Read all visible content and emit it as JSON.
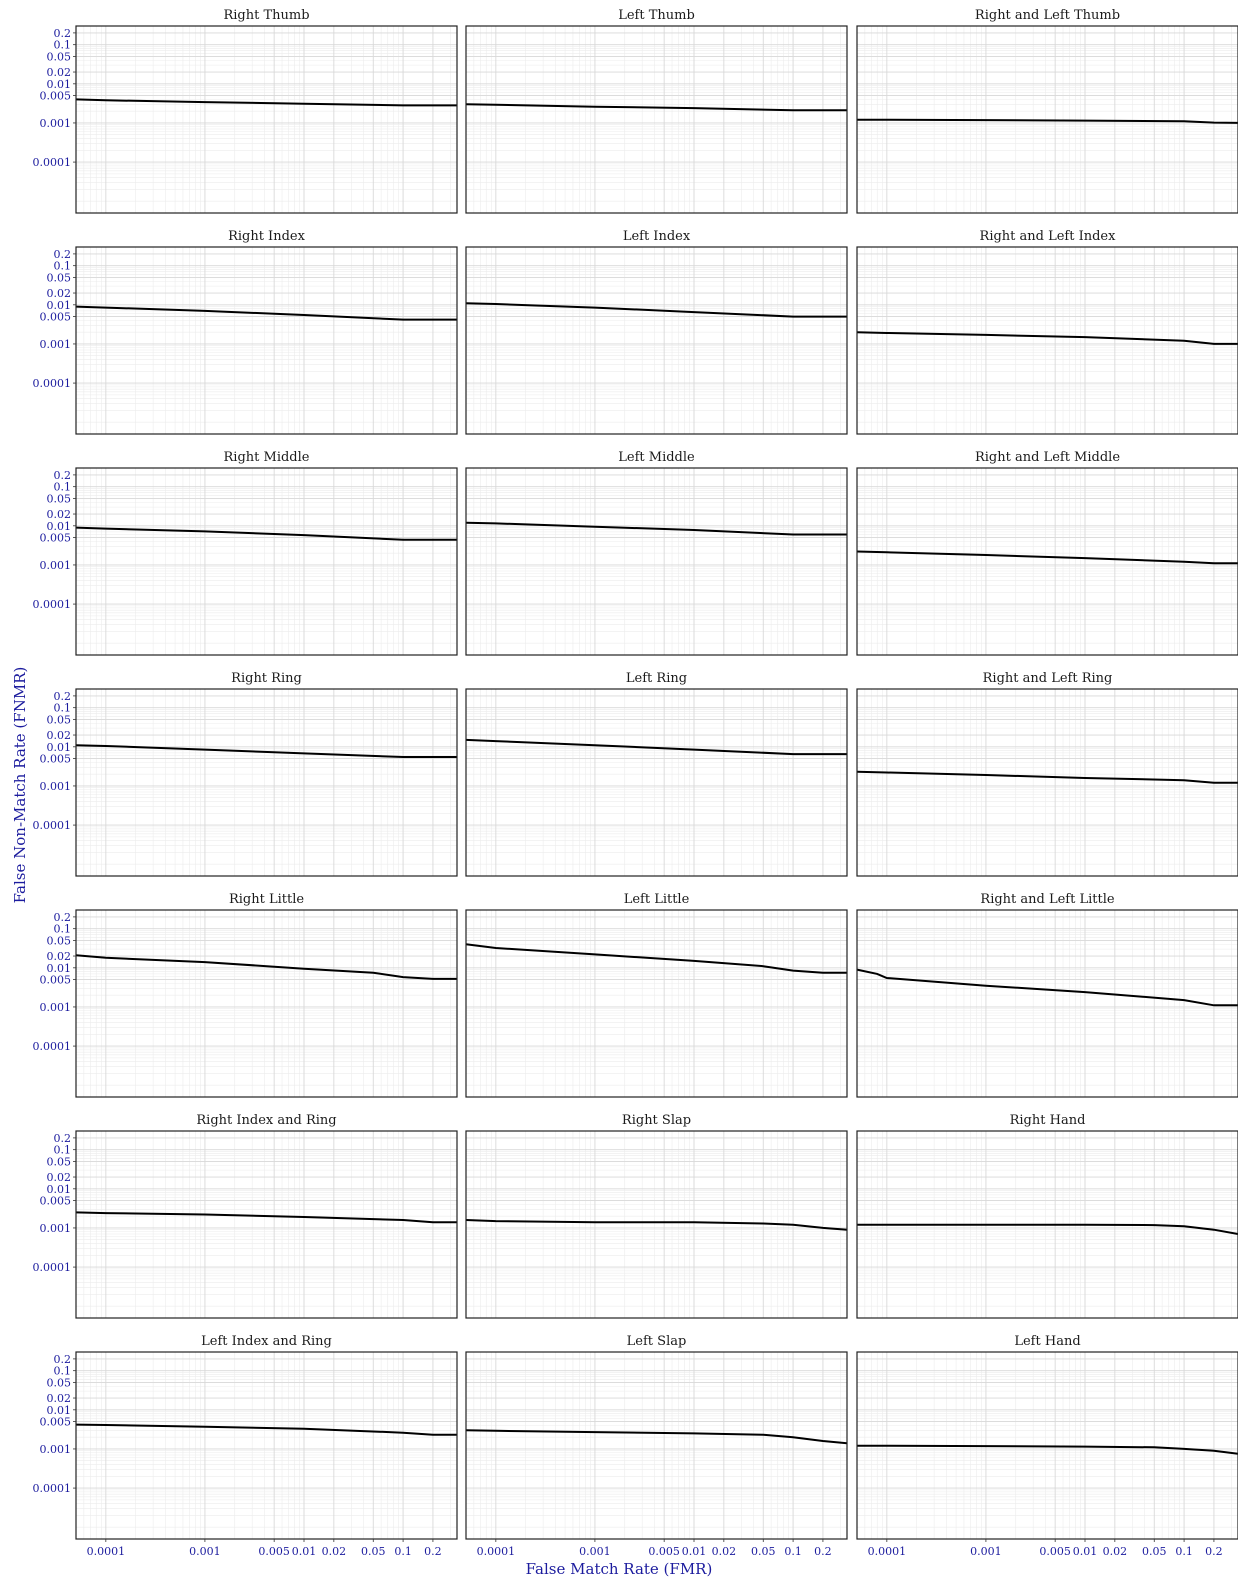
{
  "figure": {
    "xlabel": "False Match Rate (FMR)",
    "ylabel": "False Non-Match Rate (FNMR)",
    "tick_color": "#1c1c9e",
    "line_color": "#000000",
    "grid_color": "#d9d9d9"
  },
  "chart_data": [
    {
      "type": "line",
      "title": "Right Thumb",
      "x": [
        5e-05,
        0.0001,
        0.001,
        0.01,
        0.1,
        0.2,
        0.35
      ],
      "y": [
        0.004,
        0.0038,
        0.0034,
        0.0031,
        0.0028,
        0.0028,
        0.0028
      ],
      "xscale": "log",
      "yscale": "log",
      "xlim": [
        5e-05,
        0.35
      ],
      "ylim": [
        5e-06,
        0.3
      ]
    },
    {
      "type": "line",
      "title": "Left Thumb",
      "x": [
        5e-05,
        0.0001,
        0.001,
        0.01,
        0.1,
        0.2,
        0.35
      ],
      "y": [
        0.003,
        0.0029,
        0.0026,
        0.0024,
        0.0021,
        0.0021,
        0.0021
      ],
      "xscale": "log",
      "yscale": "log",
      "xlim": [
        5e-05,
        0.35
      ],
      "ylim": [
        5e-06,
        0.3
      ]
    },
    {
      "type": "line",
      "title": "Right and Left Thumb",
      "x": [
        5e-05,
        0.0001,
        0.001,
        0.01,
        0.1,
        0.2,
        0.35
      ],
      "y": [
        0.0012,
        0.0012,
        0.00118,
        0.00115,
        0.0011,
        0.00102,
        0.001
      ],
      "xscale": "log",
      "yscale": "log",
      "xlim": [
        5e-05,
        0.35
      ],
      "ylim": [
        5e-06,
        0.3
      ]
    },
    {
      "type": "line",
      "title": "Right Index",
      "x": [
        5e-05,
        0.0001,
        0.001,
        0.01,
        0.1,
        0.2,
        0.35
      ],
      "y": [
        0.009,
        0.0085,
        0.007,
        0.0055,
        0.0042,
        0.0042,
        0.0042
      ],
      "xscale": "log",
      "yscale": "log",
      "xlim": [
        5e-05,
        0.35
      ],
      "ylim": [
        5e-06,
        0.3
      ]
    },
    {
      "type": "line",
      "title": "Left Index",
      "x": [
        5e-05,
        0.0001,
        0.001,
        0.01,
        0.1,
        0.2,
        0.35
      ],
      "y": [
        0.011,
        0.0105,
        0.0085,
        0.0065,
        0.005,
        0.005,
        0.005
      ],
      "xscale": "log",
      "yscale": "log",
      "xlim": [
        5e-05,
        0.35
      ],
      "ylim": [
        5e-06,
        0.3
      ]
    },
    {
      "type": "line",
      "title": "Right and Left Index",
      "x": [
        5e-05,
        0.0001,
        0.001,
        0.01,
        0.1,
        0.2,
        0.35
      ],
      "y": [
        0.002,
        0.0019,
        0.0017,
        0.0015,
        0.0012,
        0.001,
        0.001
      ],
      "xscale": "log",
      "yscale": "log",
      "xlim": [
        5e-05,
        0.35
      ],
      "ylim": [
        5e-06,
        0.3
      ]
    },
    {
      "type": "line",
      "title": "Right Middle",
      "x": [
        5e-05,
        0.0001,
        0.001,
        0.01,
        0.1,
        0.2,
        0.35
      ],
      "y": [
        0.009,
        0.0085,
        0.0072,
        0.0058,
        0.0044,
        0.0044,
        0.0044
      ],
      "xscale": "log",
      "yscale": "log",
      "xlim": [
        5e-05,
        0.35
      ],
      "ylim": [
        5e-06,
        0.3
      ]
    },
    {
      "type": "line",
      "title": "Left Middle",
      "x": [
        5e-05,
        0.0001,
        0.001,
        0.01,
        0.1,
        0.2,
        0.35
      ],
      "y": [
        0.012,
        0.0115,
        0.0095,
        0.0078,
        0.006,
        0.006,
        0.006
      ],
      "xscale": "log",
      "yscale": "log",
      "xlim": [
        5e-05,
        0.35
      ],
      "ylim": [
        5e-06,
        0.3
      ]
    },
    {
      "type": "line",
      "title": "Right and Left Middle",
      "x": [
        5e-05,
        0.0001,
        0.001,
        0.01,
        0.1,
        0.2,
        0.35
      ],
      "y": [
        0.0022,
        0.0021,
        0.0018,
        0.0015,
        0.0012,
        0.0011,
        0.0011
      ],
      "xscale": "log",
      "yscale": "log",
      "xlim": [
        5e-05,
        0.35
      ],
      "ylim": [
        5e-06,
        0.3
      ]
    },
    {
      "type": "line",
      "title": "Right Ring",
      "x": [
        5e-05,
        0.0001,
        0.001,
        0.01,
        0.1,
        0.2,
        0.35
      ],
      "y": [
        0.011,
        0.0105,
        0.0085,
        0.0068,
        0.0055,
        0.0055,
        0.0055
      ],
      "xscale": "log",
      "yscale": "log",
      "xlim": [
        5e-05,
        0.35
      ],
      "ylim": [
        5e-06,
        0.3
      ]
    },
    {
      "type": "line",
      "title": "Left Ring",
      "x": [
        5e-05,
        0.0001,
        0.001,
        0.01,
        0.1,
        0.2,
        0.35
      ],
      "y": [
        0.015,
        0.014,
        0.011,
        0.0085,
        0.0065,
        0.0065,
        0.0065
      ],
      "xscale": "log",
      "yscale": "log",
      "xlim": [
        5e-05,
        0.35
      ],
      "ylim": [
        5e-06,
        0.3
      ]
    },
    {
      "type": "line",
      "title": "Right and Left Ring",
      "x": [
        5e-05,
        0.0001,
        0.001,
        0.01,
        0.1,
        0.2,
        0.35
      ],
      "y": [
        0.0023,
        0.0022,
        0.0019,
        0.0016,
        0.0014,
        0.0012,
        0.0012
      ],
      "xscale": "log",
      "yscale": "log",
      "xlim": [
        5e-05,
        0.35
      ],
      "ylim": [
        5e-06,
        0.3
      ]
    },
    {
      "type": "line",
      "title": "Right Little",
      "x": [
        5e-05,
        0.0001,
        0.001,
        0.01,
        0.05,
        0.1,
        0.2,
        0.35
      ],
      "y": [
        0.021,
        0.018,
        0.014,
        0.0095,
        0.0075,
        0.0058,
        0.0052,
        0.0052
      ],
      "xscale": "log",
      "yscale": "log",
      "xlim": [
        5e-05,
        0.35
      ],
      "ylim": [
        5e-06,
        0.3
      ]
    },
    {
      "type": "line",
      "title": "Left Little",
      "x": [
        5e-05,
        0.0001,
        0.001,
        0.01,
        0.05,
        0.1,
        0.2,
        0.35
      ],
      "y": [
        0.04,
        0.032,
        0.022,
        0.015,
        0.011,
        0.0085,
        0.0075,
        0.0075
      ],
      "xscale": "log",
      "yscale": "log",
      "xlim": [
        5e-05,
        0.35
      ],
      "ylim": [
        5e-06,
        0.3
      ]
    },
    {
      "type": "line",
      "title": "Right and Left Little",
      "x": [
        5e-05,
        8e-05,
        0.0001,
        0.001,
        0.01,
        0.1,
        0.2,
        0.35
      ],
      "y": [
        0.009,
        0.007,
        0.0055,
        0.0035,
        0.0024,
        0.0015,
        0.0011,
        0.0011
      ],
      "xscale": "log",
      "yscale": "log",
      "xlim": [
        5e-05,
        0.35
      ],
      "ylim": [
        5e-06,
        0.3
      ]
    },
    {
      "type": "line",
      "title": "Right Index and Ring",
      "x": [
        5e-05,
        0.0001,
        0.001,
        0.01,
        0.1,
        0.2,
        0.35
      ],
      "y": [
        0.0025,
        0.0024,
        0.0022,
        0.0019,
        0.0016,
        0.0014,
        0.0014
      ],
      "xscale": "log",
      "yscale": "log",
      "xlim": [
        5e-05,
        0.35
      ],
      "ylim": [
        5e-06,
        0.3
      ]
    },
    {
      "type": "line",
      "title": "Right Slap",
      "x": [
        5e-05,
        0.0001,
        0.001,
        0.01,
        0.05,
        0.1,
        0.2,
        0.35
      ],
      "y": [
        0.0016,
        0.0015,
        0.0014,
        0.0014,
        0.0013,
        0.0012,
        0.001,
        0.0009
      ],
      "xscale": "log",
      "yscale": "log",
      "xlim": [
        5e-05,
        0.35
      ],
      "ylim": [
        5e-06,
        0.3
      ]
    },
    {
      "type": "line",
      "title": "Right Hand",
      "x": [
        5e-05,
        0.0001,
        0.001,
        0.01,
        0.05,
        0.1,
        0.2,
        0.35
      ],
      "y": [
        0.0012,
        0.0012,
        0.0012,
        0.0012,
        0.00118,
        0.0011,
        0.0009,
        0.0007
      ],
      "xscale": "log",
      "yscale": "log",
      "xlim": [
        5e-05,
        0.35
      ],
      "ylim": [
        5e-06,
        0.3
      ]
    },
    {
      "type": "line",
      "title": "Left Index and Ring",
      "x": [
        5e-05,
        0.0001,
        0.001,
        0.01,
        0.1,
        0.2,
        0.35
      ],
      "y": [
        0.0042,
        0.0041,
        0.0037,
        0.0033,
        0.0026,
        0.0023,
        0.0023
      ],
      "xscale": "log",
      "yscale": "log",
      "xlim": [
        5e-05,
        0.35
      ],
      "ylim": [
        5e-06,
        0.3
      ]
    },
    {
      "type": "line",
      "title": "Left Slap",
      "x": [
        5e-05,
        0.0001,
        0.001,
        0.01,
        0.05,
        0.1,
        0.2,
        0.35
      ],
      "y": [
        0.003,
        0.0029,
        0.0027,
        0.0025,
        0.0023,
        0.002,
        0.0016,
        0.0014
      ],
      "xscale": "log",
      "yscale": "log",
      "xlim": [
        5e-05,
        0.35
      ],
      "ylim": [
        5e-06,
        0.3
      ]
    },
    {
      "type": "line",
      "title": "Left Hand",
      "x": [
        5e-05,
        0.0001,
        0.001,
        0.01,
        0.05,
        0.1,
        0.2,
        0.35
      ],
      "y": [
        0.0012,
        0.0012,
        0.00118,
        0.00115,
        0.0011,
        0.001,
        0.0009,
        0.00075
      ],
      "xscale": "log",
      "yscale": "log",
      "xlim": [
        5e-05,
        0.35
      ],
      "ylim": [
        5e-06,
        0.3
      ]
    }
  ],
  "axes": {
    "y_ticks": [
      {
        "v": 0.2,
        "label": "0.2"
      },
      {
        "v": 0.1,
        "label": "0.1"
      },
      {
        "v": 0.05,
        "label": "0.05"
      },
      {
        "v": 0.02,
        "label": "0.02"
      },
      {
        "v": 0.01,
        "label": "0.01"
      },
      {
        "v": 0.005,
        "label": "0.005"
      },
      {
        "v": 0.001,
        "label": "0.001"
      },
      {
        "v": 0.0001,
        "label": "0.0001"
      }
    ],
    "x_ticks": [
      {
        "v": 0.0001,
        "label": "0.0001"
      },
      {
        "v": 0.001,
        "label": "0.001"
      },
      {
        "v": 0.005,
        "label": "0.005"
      },
      {
        "v": 0.01,
        "label": "0.01"
      },
      {
        "v": 0.02,
        "label": "0.02"
      },
      {
        "v": 0.05,
        "label": "0.05"
      },
      {
        "v": 0.1,
        "label": "0.1"
      },
      {
        "v": 0.2,
        "label": "0.2"
      }
    ]
  }
}
